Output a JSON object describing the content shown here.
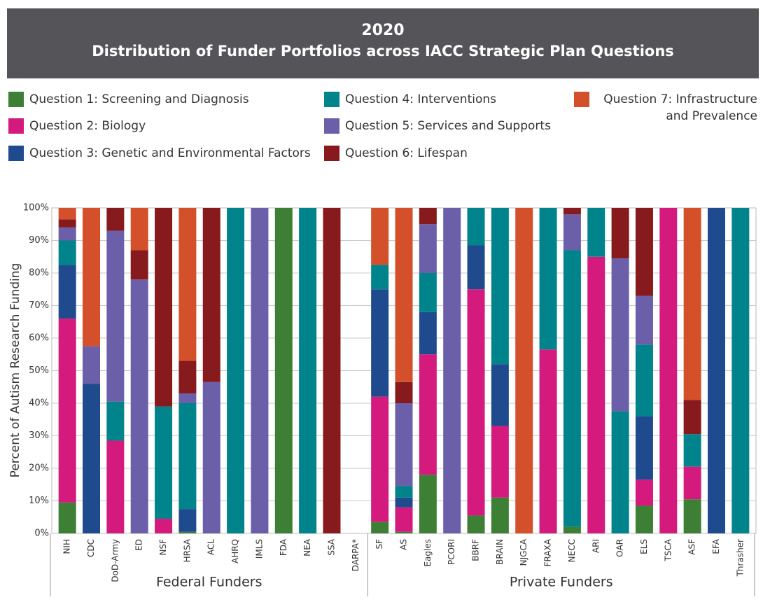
{
  "chart_data": {
    "type": "stacked_bar",
    "title": "2020",
    "subtitle": "Distribution of Funder Portfolios across IACC Strategic Plan Questions",
    "y_label": "Percent of Autism Research Funding",
    "groups": [
      {
        "name": "Federal Funders",
        "categories": [
          "NIH",
          "CDC",
          "DoD-Army",
          "ED",
          "NSF",
          "HRSA",
          "ACL",
          "AHRQ",
          "IMLS",
          "FDA",
          "NEA",
          "SSA",
          "DARPA*"
        ]
      },
      {
        "name": "Private Funders",
        "categories": [
          "SF",
          "AS",
          "Eagles",
          "PCORI",
          "BBRF",
          "BRAIN",
          "NJGCA",
          "FRAXA",
          "NECC",
          "ARI",
          "OAR",
          "ELS",
          "TSCA",
          "ASF",
          "EFA",
          "Thrasher"
        ]
      }
    ],
    "series": [
      {
        "name": "Question 1: Screening and Diagnosis",
        "color": "#3d7f35",
        "values": [
          9.5,
          0,
          0,
          0,
          0,
          0.5,
          0,
          0,
          0,
          100,
          0,
          0,
          0,
          3.5,
          0.5,
          18,
          0,
          5.5,
          11,
          0,
          0,
          2,
          0,
          0,
          8.5,
          0,
          10.5,
          0,
          0
        ]
      },
      {
        "name": "Question 2: Biology",
        "color": "#d41a7c",
        "values": [
          56.5,
          0,
          28.5,
          0,
          4.5,
          0,
          0,
          0,
          0,
          0,
          0,
          0,
          0,
          38.5,
          7.5,
          37,
          0,
          69.5,
          22,
          0,
          56.5,
          0,
          85,
          0,
          8,
          100,
          10,
          0,
          0
        ]
      },
      {
        "name": "Question 3: Genetic and Environmental Factors",
        "color": "#1f4b8e",
        "values": [
          16.5,
          46,
          0,
          0,
          0,
          7,
          0,
          0,
          0,
          0,
          0,
          0,
          0,
          33,
          3,
          13,
          0,
          13.5,
          19,
          0,
          0,
          0,
          0,
          0,
          19.5,
          0,
          0,
          100,
          0
        ]
      },
      {
        "name": "Question 4: Interventions",
        "color": "#00838a",
        "values": [
          7.5,
          0,
          12,
          0,
          34.5,
          32.5,
          0,
          100,
          0,
          0,
          100,
          0,
          0,
          7.5,
          3.5,
          12,
          0,
          11.5,
          48,
          0,
          43.5,
          85,
          15,
          37.5,
          22,
          0,
          10,
          0,
          100
        ]
      },
      {
        "name": "Question 5: Services and Supports",
        "color": "#6a5fa8",
        "values": [
          4,
          11.5,
          52.5,
          78,
          0,
          3,
          46.5,
          0,
          100,
          0,
          0,
          0,
          0,
          0,
          25.5,
          15,
          100,
          0,
          0,
          0,
          0,
          11,
          0,
          47,
          15,
          0,
          0,
          0,
          0
        ]
      },
      {
        "name": "Question 6: Lifespan",
        "color": "#861a1d",
        "values": [
          2.5,
          0,
          7,
          9,
          61,
          10,
          53.5,
          0,
          0,
          0,
          0,
          100,
          0,
          0,
          6.5,
          5,
          0,
          0,
          0,
          0,
          0,
          2,
          0,
          15.5,
          27,
          0,
          10.5,
          0,
          0
        ]
      },
      {
        "name": "Question 7: Infrastructure and Prevalence",
        "color": "#d4502a",
        "values": [
          3.5,
          42.5,
          0,
          13,
          0,
          47,
          0,
          0,
          0,
          0,
          0,
          0,
          0,
          17.5,
          53.5,
          0,
          0,
          0,
          0,
          100,
          0,
          0,
          0,
          0,
          0,
          0,
          59,
          0,
          0
        ]
      }
    ],
    "ylim": [
      0,
      100
    ],
    "yticks": [
      {
        "value": 0,
        "label": "0%"
      },
      {
        "value": 10,
        "label": "10%"
      },
      {
        "value": 20,
        "label": "20%"
      },
      {
        "value": 30,
        "label": "30%"
      },
      {
        "value": 40,
        "label": "40%"
      },
      {
        "value": 50,
        "label": "50%"
      },
      {
        "value": 60,
        "label": "60%"
      },
      {
        "value": 70,
        "label": "70%"
      },
      {
        "value": 80,
        "label": "80%"
      },
      {
        "value": 90,
        "label": "90%"
      },
      {
        "value": 100,
        "label": "100%"
      }
    ],
    "grid": true
  }
}
